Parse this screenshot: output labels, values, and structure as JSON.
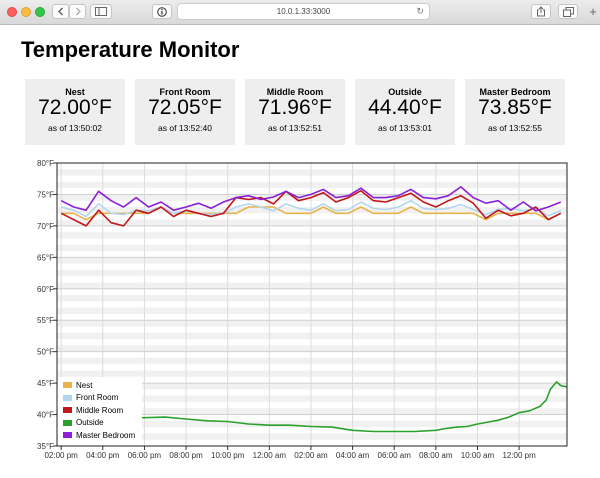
{
  "browser": {
    "url": "10.0.1.33:3000",
    "icons": {
      "back": "chevron-left-icon",
      "forward": "chevron-right-icon",
      "sidebar": "sidebar-icon",
      "info": "info-icon",
      "reload": "reload-icon",
      "share": "share-icon",
      "tabs": "tabs-icon",
      "new_tab": "plus-icon"
    }
  },
  "page": {
    "title": "Temperature Monitor"
  },
  "cards": [
    {
      "name": "Nest",
      "temp": "72.00°F",
      "asof": "as of 13:50:02"
    },
    {
      "name": "Front Room",
      "temp": "72.05°F",
      "asof": "as of 13:52:40"
    },
    {
      "name": "Middle Room",
      "temp": "71.96°F",
      "asof": "as of 13:52:51"
    },
    {
      "name": "Outside",
      "temp": "44.40°F",
      "asof": "as of 13:53:01"
    },
    {
      "name": "Master Bedroom",
      "temp": "73.85°F",
      "asof": "as of 13:52:55"
    }
  ],
  "chart_data": {
    "type": "line",
    "y_ticks": [
      "35°F",
      "40°F",
      "45°F",
      "50°F",
      "55°F",
      "60°F",
      "65°F",
      "70°F",
      "75°F",
      "80°F"
    ],
    "x_ticks": [
      "02:00 pm",
      "04:00 pm",
      "06:00 pm",
      "08:00 pm",
      "10:00 pm",
      "12:00 am",
      "02:00 am",
      "04:00 am",
      "06:00 am",
      "08:00 am",
      "10:00 am",
      "12:00 pm"
    ],
    "ylim": [
      35,
      80
    ],
    "x_hours_range": [
      -0.2,
      24.3
    ],
    "grid": true,
    "legend_position": "bottom-left",
    "series": [
      {
        "name": "Nest",
        "color": "#e8b34a",
        "x": [
          0,
          0.6,
          1.2,
          1.8,
          2.4,
          3.0,
          3.6,
          4.2,
          4.8,
          5.4,
          6.0,
          6.6,
          7.2,
          7.8,
          8.4,
          9.0,
          9.6,
          10.2,
          10.8,
          11.4,
          12.0,
          12.6,
          13.2,
          13.8,
          14.4,
          15.0,
          15.6,
          16.2,
          16.8,
          17.4,
          18.0,
          18.6,
          19.2,
          19.8,
          20.4,
          21.0,
          21.6,
          22.2,
          22.8,
          23.4,
          24.0
        ],
        "values": [
          72,
          72,
          71,
          72,
          72,
          72,
          72,
          72,
          73,
          72,
          72,
          72,
          72,
          72,
          72,
          73,
          73,
          73,
          72,
          72,
          72,
          73,
          72,
          72,
          73,
          72,
          72,
          72,
          73,
          72,
          72,
          72,
          72,
          72,
          71,
          72,
          72,
          72,
          72,
          71,
          72
        ]
      },
      {
        "name": "Front Room",
        "color": "#b3d6ef",
        "x": [
          0,
          0.6,
          1.2,
          1.8,
          2.4,
          3.0,
          3.6,
          4.2,
          4.8,
          5.4,
          6.0,
          6.6,
          7.2,
          7.8,
          8.4,
          9.0,
          9.6,
          10.2,
          10.8,
          11.4,
          12.0,
          12.6,
          13.2,
          13.8,
          14.4,
          15.0,
          15.6,
          16.2,
          16.8,
          17.4,
          18.0,
          18.6,
          19.2,
          19.8,
          20.4,
          21.0,
          21.6,
          22.2,
          22.8,
          23.4,
          24.0
        ],
        "values": [
          73,
          72.5,
          71.5,
          73.5,
          72,
          71.8,
          72.5,
          72.4,
          73,
          72,
          72.4,
          72,
          71.8,
          72,
          73,
          73.5,
          73,
          72.4,
          73.5,
          72.8,
          72.5,
          73.5,
          72.4,
          72.6,
          73.8,
          72.8,
          72.6,
          73,
          74,
          72.8,
          72.6,
          72.8,
          73.4,
          72.6,
          71.8,
          72.6,
          72.8,
          72.4,
          72.8,
          71.6,
          72.4
        ]
      },
      {
        "name": "Middle Room",
        "color": "#c0181b",
        "x": [
          0,
          0.6,
          1.2,
          1.8,
          2.4,
          3.0,
          3.6,
          4.2,
          4.8,
          5.4,
          6.0,
          6.6,
          7.2,
          7.8,
          8.4,
          9.0,
          9.6,
          10.2,
          10.8,
          11.4,
          12.0,
          12.6,
          13.2,
          13.8,
          14.4,
          15.0,
          15.6,
          16.2,
          16.8,
          17.4,
          18.0,
          18.6,
          19.2,
          19.8,
          20.4,
          21.0,
          21.6,
          22.2,
          22.8,
          23.4,
          24.0
        ],
        "values": [
          72,
          71,
          70,
          72.5,
          70.5,
          70,
          72.5,
          72,
          73,
          71.5,
          72.5,
          72,
          71.5,
          72,
          74.5,
          74.2,
          74.5,
          73.5,
          75.5,
          74,
          74.5,
          75.3,
          73.8,
          74.5,
          75.6,
          74,
          73.8,
          74.5,
          75.2,
          73.8,
          73,
          74,
          74.8,
          73.6,
          71.2,
          72.5,
          71.6,
          72,
          73,
          71,
          72
        ]
      },
      {
        "name": "Outside",
        "color": "#2ca02c",
        "x": [
          0,
          0.4,
          1.5,
          2.0,
          3.0,
          4.0,
          5.0,
          6.0,
          7.0,
          8.0,
          9.0,
          10.0,
          11.0,
          12.0,
          13.0,
          14.0,
          15.0,
          16.0,
          17.0,
          18.0,
          18.5,
          19.0,
          19.5,
          20.0,
          20.5,
          21.0,
          21.5,
          22.0,
          22.5,
          23.0,
          23.3,
          23.5,
          23.8,
          24.0,
          24.3
        ],
        "values": [
          38,
          38.5,
          39,
          39.3,
          39.5,
          39.5,
          39.6,
          39.3,
          39,
          38.9,
          38.5,
          38.3,
          38.3,
          38.1,
          38,
          37.5,
          37.3,
          37.3,
          37.3,
          37.5,
          37.8,
          38,
          38.1,
          38.5,
          38.8,
          39.1,
          39.6,
          40.3,
          40.6,
          41.3,
          42.3,
          44,
          45.2,
          44.6,
          44.4
        ]
      },
      {
        "name": "Master Bedroom",
        "color": "#8c1fd8",
        "x": [
          0,
          0.6,
          1.2,
          1.8,
          2.4,
          3.0,
          3.6,
          4.2,
          4.8,
          5.4,
          6.0,
          6.6,
          7.2,
          7.8,
          8.4,
          9.0,
          9.6,
          10.2,
          10.8,
          11.4,
          12.0,
          12.6,
          13.2,
          13.8,
          14.4,
          15.0,
          15.6,
          16.2,
          16.8,
          17.4,
          18.0,
          18.6,
          19.2,
          19.8,
          20.4,
          21.0,
          21.6,
          22.2,
          22.8,
          23.4,
          24.0
        ],
        "values": [
          74,
          73,
          72.5,
          75.5,
          74,
          73,
          74.5,
          73,
          73.8,
          72.5,
          73,
          73.6,
          72.8,
          73.8,
          74.5,
          74.8,
          74.2,
          74.6,
          75.5,
          74.5,
          75,
          75.8,
          74.5,
          74.8,
          76,
          74.5,
          74.5,
          74.8,
          75.8,
          74.5,
          74.3,
          74.8,
          76.2,
          74.5,
          73.6,
          74,
          72.5,
          73.8,
          72.4,
          73,
          73.8
        ]
      }
    ]
  }
}
